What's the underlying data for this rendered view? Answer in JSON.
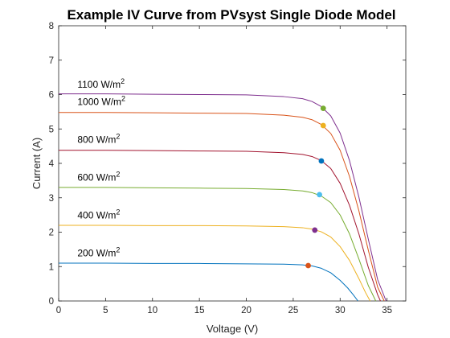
{
  "chart_data": {
    "type": "line",
    "title": "Example IV Curve from PVsyst Single Diode Model",
    "xlabel": "Voltage (V)",
    "ylabel": "Current (A)",
    "xlim": [
      0,
      37
    ],
    "ylim": [
      0,
      8
    ],
    "xticks": [
      "0",
      "5",
      "10",
      "15",
      "20",
      "25",
      "30",
      "35"
    ],
    "yticks": [
      "0",
      "1",
      "2",
      "3",
      "4",
      "5",
      "6",
      "7",
      "8"
    ],
    "grid": false,
    "legend": "none",
    "annotations": [
      {
        "text": "1100 W/m",
        "sup": "2",
        "x": 2,
        "y": 6.2
      },
      {
        "text": "1000 W/m",
        "sup": "2",
        "x": 2,
        "y": 5.7
      },
      {
        "text": "800 W/m",
        "sup": "2",
        "x": 2,
        "y": 4.6
      },
      {
        "text": "600 W/m",
        "sup": "2",
        "x": 2,
        "y": 3.5
      },
      {
        "text": "400 W/m",
        "sup": "2",
        "x": 2,
        "y": 2.4
      },
      {
        "text": "200 W/m",
        "sup": "2",
        "x": 2,
        "y": 1.3
      }
    ],
    "series": [
      {
        "color": "#0072BD",
        "x": [
          0,
          5,
          10,
          15,
          20,
          24,
          26,
          27,
          28,
          29,
          30,
          30.8,
          31.4,
          31.9
        ],
        "y": [
          1.1,
          1.1,
          1.09,
          1.09,
          1.08,
          1.07,
          1.05,
          1.02,
          0.95,
          0.82,
          0.6,
          0.38,
          0.18,
          0
        ],
        "mpp": {
          "x": 26.6,
          "y": 1.03,
          "color": "#D95319"
        }
      },
      {
        "color": "#EDB120",
        "x": [
          0,
          5,
          10,
          15,
          20,
          24,
          26,
          27,
          28,
          29,
          30,
          31,
          32,
          32.7,
          33.2
        ],
        "y": [
          2.2,
          2.2,
          2.19,
          2.19,
          2.18,
          2.16,
          2.13,
          2.09,
          2.01,
          1.86,
          1.58,
          1.18,
          0.65,
          0.25,
          0
        ],
        "mpp": {
          "x": 27.3,
          "y": 2.06,
          "color": "#7E2F8E"
        }
      },
      {
        "color": "#77AC30",
        "x": [
          0,
          5,
          10,
          15,
          20,
          24,
          26,
          27,
          28,
          29,
          30,
          31,
          32,
          33,
          33.8
        ],
        "y": [
          3.3,
          3.3,
          3.29,
          3.28,
          3.27,
          3.24,
          3.2,
          3.15,
          3.05,
          2.86,
          2.5,
          1.95,
          1.22,
          0.45,
          0
        ],
        "mpp": {
          "x": 27.8,
          "y": 3.09,
          "color": "#4DBEEE"
        }
      },
      {
        "color": "#A2142F",
        "x": [
          0,
          5,
          10,
          15,
          20,
          24,
          26,
          27,
          28,
          29,
          30,
          31,
          32,
          33,
          34,
          34.3
        ],
        "y": [
          4.38,
          4.38,
          4.37,
          4.36,
          4.35,
          4.31,
          4.26,
          4.2,
          4.08,
          3.85,
          3.42,
          2.78,
          1.95,
          0.98,
          0.18,
          0
        ],
        "mpp": {
          "x": 28.0,
          "y": 4.07,
          "color": "#0072BD"
        }
      },
      {
        "color": "#D95319",
        "x": [
          0,
          5,
          10,
          15,
          20,
          24,
          26,
          27,
          28,
          29,
          30,
          31,
          32,
          33,
          34,
          34.7
        ],
        "y": [
          5.48,
          5.48,
          5.47,
          5.46,
          5.45,
          5.4,
          5.34,
          5.27,
          5.13,
          4.87,
          4.38,
          3.62,
          2.62,
          1.48,
          0.4,
          0
        ],
        "mpp": {
          "x": 28.2,
          "y": 5.1,
          "color": "#EDB120"
        }
      },
      {
        "color": "#7E2F8E",
        "x": [
          0,
          5,
          10,
          15,
          20,
          24,
          26,
          27,
          28,
          29,
          30,
          31,
          32,
          33,
          34,
          34.9
        ],
        "y": [
          6.02,
          6.02,
          6.01,
          6.0,
          5.99,
          5.94,
          5.88,
          5.8,
          5.65,
          5.38,
          4.88,
          4.08,
          3.02,
          1.8,
          0.62,
          0
        ],
        "mpp": {
          "x": 28.2,
          "y": 5.6,
          "color": "#77AC30"
        }
      }
    ]
  }
}
